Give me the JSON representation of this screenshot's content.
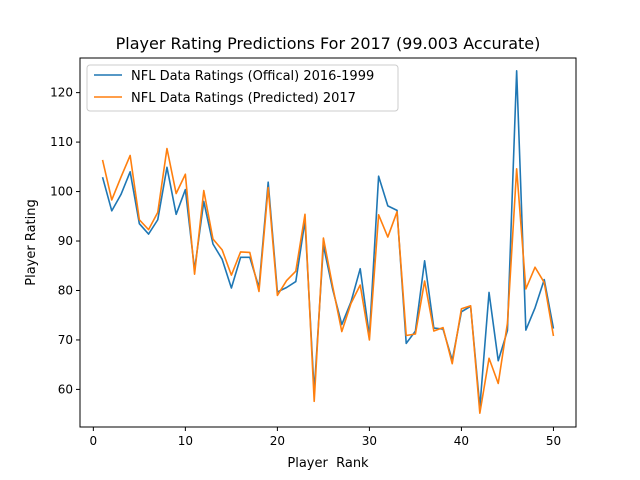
{
  "chart_data": {
    "type": "line",
    "title": "Player Rating Predictions For 2017 (99.003 Accurate)",
    "xlabel": "Player  Rank",
    "ylabel": "Player Rating",
    "xlim": [
      -1.45,
      52.45
    ],
    "ylim": [
      52.4,
      127.0
    ],
    "x_ticks": [
      0,
      10,
      20,
      30,
      40,
      50
    ],
    "y_ticks": [
      60,
      70,
      80,
      90,
      100,
      110,
      120
    ],
    "grid": false,
    "legend_position": "top-left",
    "x": [
      1,
      2,
      3,
      4,
      5,
      6,
      7,
      8,
      9,
      10,
      11,
      12,
      13,
      14,
      15,
      16,
      17,
      18,
      19,
      20,
      21,
      22,
      23,
      24,
      25,
      26,
      27,
      28,
      29,
      30,
      31,
      32,
      33,
      34,
      35,
      36,
      37,
      38,
      39,
      40,
      41,
      42,
      43,
      44,
      45,
      46,
      47,
      48,
      49,
      50
    ],
    "series": [
      {
        "name": "NFL Data Ratings (Offical) 2016-1999",
        "color": "#1f77b4",
        "values": [
          102.9,
          96.1,
          99.4,
          104.0,
          93.5,
          91.4,
          94.3,
          104.9,
          95.4,
          100.4,
          84.2,
          98.0,
          89.4,
          86.3,
          80.5,
          86.7,
          86.7,
          80.6,
          101.9,
          79.7,
          80.6,
          81.8,
          94.1,
          59.5,
          89.1,
          80.3,
          73.1,
          77.7,
          84.4,
          70.8,
          103.1,
          97.1,
          96.2,
          69.3,
          71.8,
          86.0,
          72.4,
          72.2,
          65.9,
          75.7,
          76.8,
          56.4,
          79.6,
          65.8,
          71.9,
          124.4,
          72.0,
          76.5,
          82.2,
          72.3
        ]
      },
      {
        "name": "NFL Data Ratings (Predicted) 2017",
        "color": "#ff7f0e",
        "values": [
          106.4,
          98.3,
          102.9,
          107.3,
          94.3,
          92.3,
          95.8,
          108.7,
          99.6,
          103.5,
          83.3,
          100.2,
          90.4,
          88.2,
          83.1,
          87.8,
          87.7,
          79.8,
          100.8,
          79.0,
          82.0,
          83.9,
          95.4,
          57.6,
          90.6,
          80.9,
          71.7,
          77.4,
          81.1,
          70.0,
          95.3,
          90.8,
          95.9,
          70.9,
          71.2,
          81.9,
          71.8,
          72.5,
          65.2,
          76.3,
          76.9,
          55.2,
          66.3,
          61.2,
          73.4,
          104.6,
          80.3,
          84.7,
          81.6,
          70.8
        ]
      }
    ]
  }
}
